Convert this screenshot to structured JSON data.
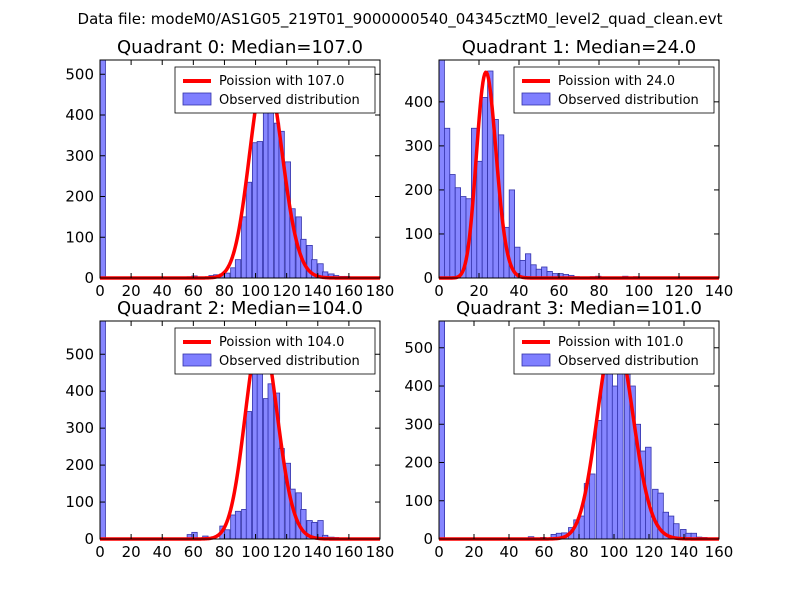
{
  "suptitle": "Data file: modeM0/AS1G05_219T01_9000000540_04345cztM0_level2_quad_clean.evt",
  "colors": {
    "poisson": "#ff0000",
    "hist_fill": "#7f7fff",
    "hist_edge": "#3333aa"
  },
  "chart_data": [
    {
      "type": "bar",
      "title": "Quadrant 0: Median=107.0",
      "xlim": [
        0,
        180
      ],
      "ylim": [
        0,
        535
      ],
      "xticks": [
        "0",
        "20",
        "40",
        "60",
        "80",
        "100",
        "120",
        "140",
        "160",
        "180"
      ],
      "yticks": [
        "0",
        "100",
        "200",
        "300",
        "400",
        "500"
      ],
      "bin_width": 3.5,
      "bins": [
        [
          0,
          535
        ],
        [
          56,
          3
        ],
        [
          59,
          5
        ],
        [
          70,
          6
        ],
        [
          73,
          8
        ],
        [
          77,
          10
        ],
        [
          80,
          12
        ],
        [
          84,
          25
        ],
        [
          87,
          45
        ],
        [
          91,
          150
        ],
        [
          94,
          235
        ],
        [
          98,
          332
        ],
        [
          101,
          335
        ],
        [
          105,
          410
        ],
        [
          108,
          420
        ],
        [
          112,
          380
        ],
        [
          115,
          360
        ],
        [
          119,
          285
        ],
        [
          122,
          170
        ],
        [
          126,
          150
        ],
        [
          129,
          95
        ],
        [
          133,
          80
        ],
        [
          136,
          45
        ],
        [
          140,
          35
        ],
        [
          143,
          15
        ],
        [
          147,
          10
        ],
        [
          150,
          6
        ],
        [
          154,
          4
        ],
        [
          157,
          4
        ]
      ],
      "poisson_mean": 107.0,
      "poisson_peak": 510,
      "legend": {
        "poisson": "Poission with 107.0",
        "observed": "Observed distribution"
      }
    },
    {
      "type": "bar",
      "title": "Quadrant 1: Median=24.0",
      "xlim": [
        0,
        140
      ],
      "ylim": [
        0,
        495
      ],
      "xticks": [
        "0",
        "20",
        "40",
        "60",
        "80",
        "100",
        "120",
        "140"
      ],
      "yticks": [
        "0",
        "100",
        "200",
        "300",
        "400"
      ],
      "bin_width": 2.7,
      "bins": [
        [
          0,
          495
        ],
        [
          2.7,
          340
        ],
        [
          5.4,
          235
        ],
        [
          8.1,
          205
        ],
        [
          10.8,
          185
        ],
        [
          13.5,
          180
        ],
        [
          16.2,
          340
        ],
        [
          18.9,
          265
        ],
        [
          21.6,
          410
        ],
        [
          24.3,
          470
        ],
        [
          27,
          360
        ],
        [
          29.7,
          325
        ],
        [
          32.4,
          115
        ],
        [
          35.1,
          200
        ],
        [
          37.8,
          70
        ],
        [
          40.5,
          40
        ],
        [
          43.2,
          55
        ],
        [
          45.9,
          30
        ],
        [
          48.6,
          20
        ],
        [
          51.3,
          25
        ],
        [
          54,
          15
        ],
        [
          56.7,
          10
        ],
        [
          59.4,
          10
        ],
        [
          62.1,
          8
        ],
        [
          64.8,
          6
        ],
        [
          67.5,
          3
        ],
        [
          70.2,
          1
        ],
        [
          75.6,
          3
        ],
        [
          78.3,
          4
        ],
        [
          86.4,
          2
        ],
        [
          91.8,
          4
        ],
        [
          97.2,
          3
        ],
        [
          102.6,
          2
        ],
        [
          113.4,
          1
        ],
        [
          118.8,
          2
        ]
      ],
      "poisson_mean": 24.0,
      "poisson_peak": 465,
      "legend": {
        "poisson": "Poission with 24.0",
        "observed": "Observed distribution"
      }
    },
    {
      "type": "bar",
      "title": "Quadrant 2: Median=104.0",
      "xlim": [
        0,
        180
      ],
      "ylim": [
        0,
        590
      ],
      "xticks": [
        "0",
        "20",
        "40",
        "60",
        "80",
        "100",
        "120",
        "140",
        "160",
        "180"
      ],
      "yticks": [
        "0",
        "100",
        "200",
        "300",
        "400",
        "500"
      ],
      "bin_width": 3.5,
      "bins": [
        [
          0,
          590
        ],
        [
          56,
          12
        ],
        [
          59,
          18
        ],
        [
          66,
          8
        ],
        [
          77,
          35
        ],
        [
          80,
          25
        ],
        [
          84,
          65
        ],
        [
          87,
          75
        ],
        [
          91,
          80
        ],
        [
          94,
          345
        ],
        [
          98,
          495
        ],
        [
          101,
          480
        ],
        [
          105,
          380
        ],
        [
          108,
          420
        ],
        [
          112,
          395
        ],
        [
          115,
          245
        ],
        [
          119,
          205
        ],
        [
          122,
          135
        ],
        [
          126,
          125
        ],
        [
          129,
          80
        ],
        [
          133,
          50
        ],
        [
          136,
          45
        ],
        [
          140,
          50
        ],
        [
          143,
          10
        ],
        [
          147,
          5
        ],
        [
          150,
          4
        ]
      ],
      "poisson_mean": 104.0,
      "poisson_peak": 560,
      "legend": {
        "poisson": "Poission with 104.0",
        "observed": "Observed distribution"
      }
    },
    {
      "type": "bar",
      "title": "Quadrant 3: Median=101.0",
      "xlim": [
        0,
        160
      ],
      "ylim": [
        0,
        570
      ],
      "xticks": [
        "0",
        "20",
        "40",
        "60",
        "80",
        "100",
        "120",
        "140",
        "160"
      ],
      "yticks": [
        "0",
        "100",
        "200",
        "300",
        "400",
        "500"
      ],
      "bin_width": 3.2,
      "bins": [
        [
          0,
          570
        ],
        [
          51,
          6
        ],
        [
          58,
          4
        ],
        [
          64,
          12
        ],
        [
          67,
          15
        ],
        [
          70,
          16
        ],
        [
          74,
          30
        ],
        [
          77,
          50
        ],
        [
          80,
          60
        ],
        [
          83,
          145
        ],
        [
          86,
          170
        ],
        [
          90,
          310
        ],
        [
          93,
          440
        ],
        [
          96,
          455
        ],
        [
          99,
          400
        ],
        [
          102,
          505
        ],
        [
          106,
          505
        ],
        [
          109,
          400
        ],
        [
          112,
          300
        ],
        [
          115,
          230
        ],
        [
          118,
          240
        ],
        [
          122,
          130
        ],
        [
          125,
          120
        ],
        [
          128,
          70
        ],
        [
          131,
          60
        ],
        [
          134,
          40
        ],
        [
          138,
          25
        ],
        [
          141,
          15
        ],
        [
          144,
          15
        ],
        [
          147,
          5
        ],
        [
          150,
          4
        ]
      ],
      "poisson_mean": 101.0,
      "poisson_peak": 540,
      "legend": {
        "poisson": "Poission with 101.0",
        "observed": "Observed distribution"
      }
    }
  ]
}
